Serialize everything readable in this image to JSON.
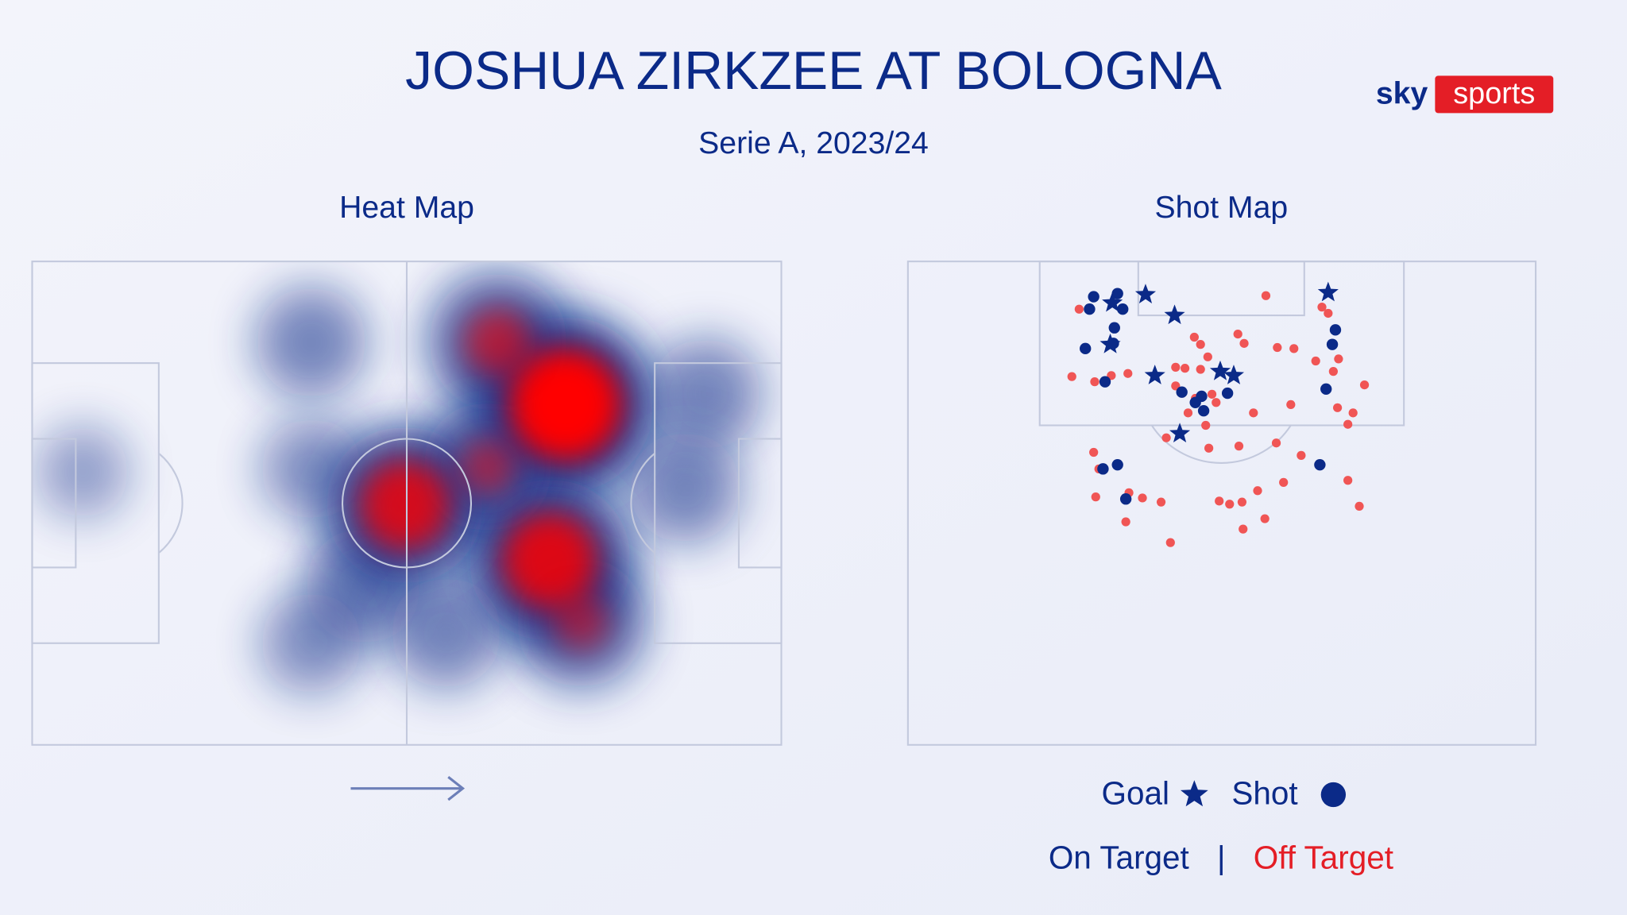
{
  "chart_data": [
    {
      "type": "heatmap",
      "title": "Heat Map",
      "x": [
        514,
        499,
        359,
        449,
        439,
        319,
        269,
        649,
        629,
        529,
        49,
        269,
        399,
        269
      ],
      "y": [
        138,
        288,
        235,
        78,
        198,
        313,
        78,
        128,
        218,
        348,
        203,
        368,
        358,
        200
      ],
      "values": [
        1.0,
        0.85,
        0.8,
        0.6,
        0.5,
        0.35,
        0.3,
        0.3,
        0.3,
        0.5,
        0.1,
        0.2,
        0.3,
        0.2
      ],
      "xlim": [
        0,
        722
      ],
      "ylim": [
        0,
        466
      ],
      "color": "#0b2a88",
      "hot_color": "#ff0000"
    },
    {
      "type": "scatter",
      "title": "Shot Map",
      "xlim": [
        0,
        605
      ],
      "ylim": [
        0,
        466
      ],
      "series": [
        {
          "name": "Goal",
          "marker": "star",
          "color": "#0b2a88",
          "x": [
            197,
            229,
            257,
            405,
            195,
            238,
            301,
            314,
            262
          ],
          "y": [
            40,
            32,
            52,
            30,
            80,
            110,
            106,
            110,
            166
          ]
        },
        {
          "name": "On Target",
          "marker": "circle",
          "color": "#0b2a88",
          "x": [
            179,
            175,
            202,
            207,
            199,
            171,
            198,
            190,
            264,
            277,
            283,
            285,
            308,
            412,
            409,
            403,
            188,
            202,
            210,
            397
          ],
          "y": [
            34,
            46,
            31,
            46,
            64,
            84,
            79,
            116,
            126,
            136,
            130,
            144,
            127,
            66,
            80,
            123,
            200,
            196,
            229,
            196
          ]
        },
        {
          "name": "Off Target",
          "marker": "circle",
          "color": "#f05555",
          "x": [
            345,
            165,
            399,
            405,
            276,
            282,
            318,
            324,
            356,
            372,
            289,
            258,
            267,
            393,
            415,
            410,
            158,
            180,
            196,
            212,
            282,
            293,
            297,
            277,
            270,
            258,
            440,
            369,
            333,
            414,
            429,
            424,
            249,
            287,
            290,
            319,
            355,
            179,
            379,
            213,
            362,
            337,
            424,
            226,
            244,
            181,
            300,
            310,
            322,
            344,
            323,
            210,
            253,
            435,
            184
          ],
          "y": [
            33,
            46,
            44,
            50,
            73,
            80,
            70,
            79,
            83,
            84,
            92,
            102,
            103,
            96,
            94,
            106,
            111,
            116,
            110,
            108,
            104,
            128,
            136,
            132,
            146,
            120,
            119,
            138,
            146,
            141,
            146,
            157,
            170,
            158,
            180,
            178,
            175,
            184,
            187,
            223,
            213,
            221,
            211,
            228,
            232,
            227,
            231,
            234,
            232,
            248,
            258,
            251,
            271,
            236,
            200
          ]
        }
      ],
      "legend": {
        "shot": "Shot",
        "separator": "|"
      }
    }
  ],
  "header": {
    "title": "JOSHUA ZIRKZEE AT BOLOGNA",
    "subtitle": "Serie A, 2023/24"
  },
  "brand": {
    "sky": "sky",
    "sports": "sports"
  }
}
